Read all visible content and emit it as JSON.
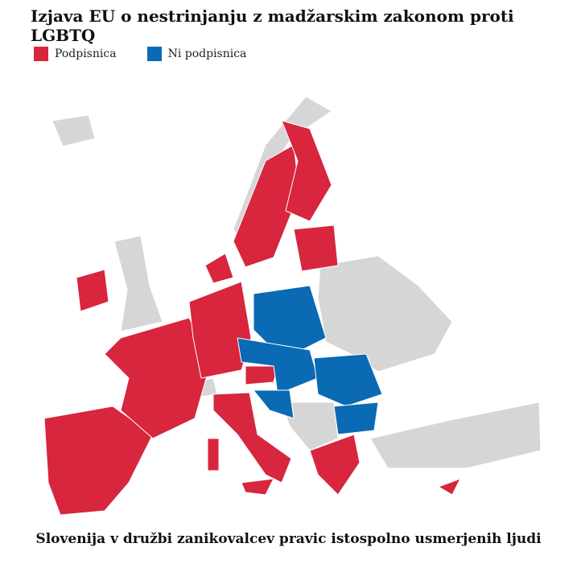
{
  "title": "Izjava EU o nestrinjanju z madžarskim zakonom proti LGBTQ",
  "legend": [
    {
      "name": "Podpisnica",
      "color": "#d7263d"
    },
    {
      "name": "Ni podpisnica",
      "color": "#0a6ab4"
    }
  ],
  "caption": "Slovenija v družbi zanikovalcev pravic istospolno usmerjenih ljudi"
}
